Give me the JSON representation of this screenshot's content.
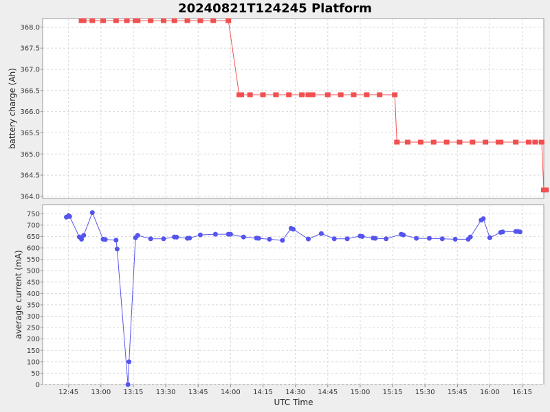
{
  "chart_data": {
    "title": "20240821T124245 Platform",
    "xlabel": "UTC Time",
    "x_ticks": [
      "12:45",
      "13:00",
      "13:15",
      "13:30",
      "13:45",
      "14:00",
      "14:15",
      "14:30",
      "14:45",
      "15:00",
      "15:15",
      "15:30",
      "15:45",
      "16:00",
      "16:15"
    ],
    "xlim": [
      "12:33",
      "16:25"
    ],
    "grid": true,
    "panels": [
      {
        "type": "line",
        "ylabel": "battery charge (Ah)",
        "ylim": [
          363.95,
          368.2
        ],
        "y_ticks": [
          "364.0",
          "364.5",
          "365.0",
          "365.5",
          "366.0",
          "366.5",
          "367.0",
          "367.5",
          "368.0"
        ],
        "color": "#f05050",
        "marker": "square",
        "series": [
          {
            "x": [
              "12:51",
              "12:52",
              "12:56",
              "13:01",
              "13:07",
              "13:12",
              "13:16",
              "13:17",
              "13:23",
              "13:29",
              "13:34",
              "13:40",
              "13:46",
              "13:52",
              "13:59",
              "14:04",
              "14:05",
              "14:09",
              "14:15",
              "14:21",
              "14:27",
              "14:33",
              "14:36",
              "14:38",
              "14:45",
              "14:51",
              "14:57",
              "15:03",
              "15:09",
              "15:16",
              "15:17",
              "15:22",
              "15:28",
              "15:34",
              "15:40",
              "15:46",
              "15:52",
              "15:58",
              "16:04",
              "16:05",
              "16:12",
              "16:18",
              "16:21",
              "16:24",
              "16:25",
              "16:26"
            ],
            "y": [
              368.15,
              368.15,
              368.15,
              368.15,
              368.15,
              368.15,
              368.15,
              368.15,
              368.15,
              368.15,
              368.15,
              368.15,
              368.15,
              368.15,
              368.15,
              366.4,
              366.4,
              366.4,
              366.4,
              366.4,
              366.4,
              366.4,
              366.4,
              366.4,
              366.4,
              366.4,
              366.4,
              366.4,
              366.4,
              366.4,
              365.28,
              365.28,
              365.28,
              365.28,
              365.28,
              365.28,
              365.28,
              365.28,
              365.28,
              365.28,
              365.28,
              365.28,
              365.28,
              365.28,
              364.15,
              364.15
            ]
          }
        ]
      },
      {
        "type": "line",
        "ylabel": "average current (mA)",
        "ylim": [
          0,
          790
        ],
        "y_ticks": [
          "0",
          "50",
          "100",
          "150",
          "200",
          "250",
          "300",
          "350",
          "400",
          "450",
          "500",
          "550",
          "600",
          "650",
          "700",
          "750"
        ],
        "color": "#5555ee",
        "marker": "circle",
        "series": [
          {
            "x": [
              "12:44",
              "12:45",
              "12:45.5",
              "12:50",
              "12:51",
              "12:52",
              "12:56",
              "13:01",
              "13:02",
              "13:07",
              "13:07.5",
              "13:12.5",
              "13:13",
              "13:16",
              "13:17",
              "13:23",
              "13:29",
              "13:34",
              "13:35",
              "13:40",
              "13:41",
              "13:46",
              "13:53",
              "13:59",
              "14:00",
              "14:06",
              "14:12",
              "14:13",
              "14:18",
              "14:24",
              "14:28",
              "14:29",
              "14:36",
              "14:42",
              "14:48",
              "14:54",
              "15:00",
              "15:01",
              "15:06",
              "15:07",
              "15:12",
              "15:19",
              "15:20",
              "15:26",
              "15:32",
              "15:38",
              "15:44",
              "15:50",
              "15:51",
              "15:56",
              "15:57",
              "16:00",
              "16:05",
              "16:06",
              "16:12",
              "16:13",
              "16:14"
            ],
            "y": [
              735,
              742,
              738,
              648,
              638,
              655,
              755,
              638,
              637,
              634,
              595,
              0,
              100,
              645,
              655,
              640,
              640,
              648,
              647,
              642,
              643,
              657,
              660,
              660,
              660,
              648,
              643,
              642,
              638,
              633,
              686,
              682,
              639,
              663,
              640,
              640,
              652,
              650,
              643,
              642,
              640,
              660,
              657,
              642,
              642,
              640,
              638,
              638,
              648,
              722,
              728,
              645,
              668,
              670,
              672,
              672,
              670
            ]
          }
        ]
      }
    ]
  }
}
